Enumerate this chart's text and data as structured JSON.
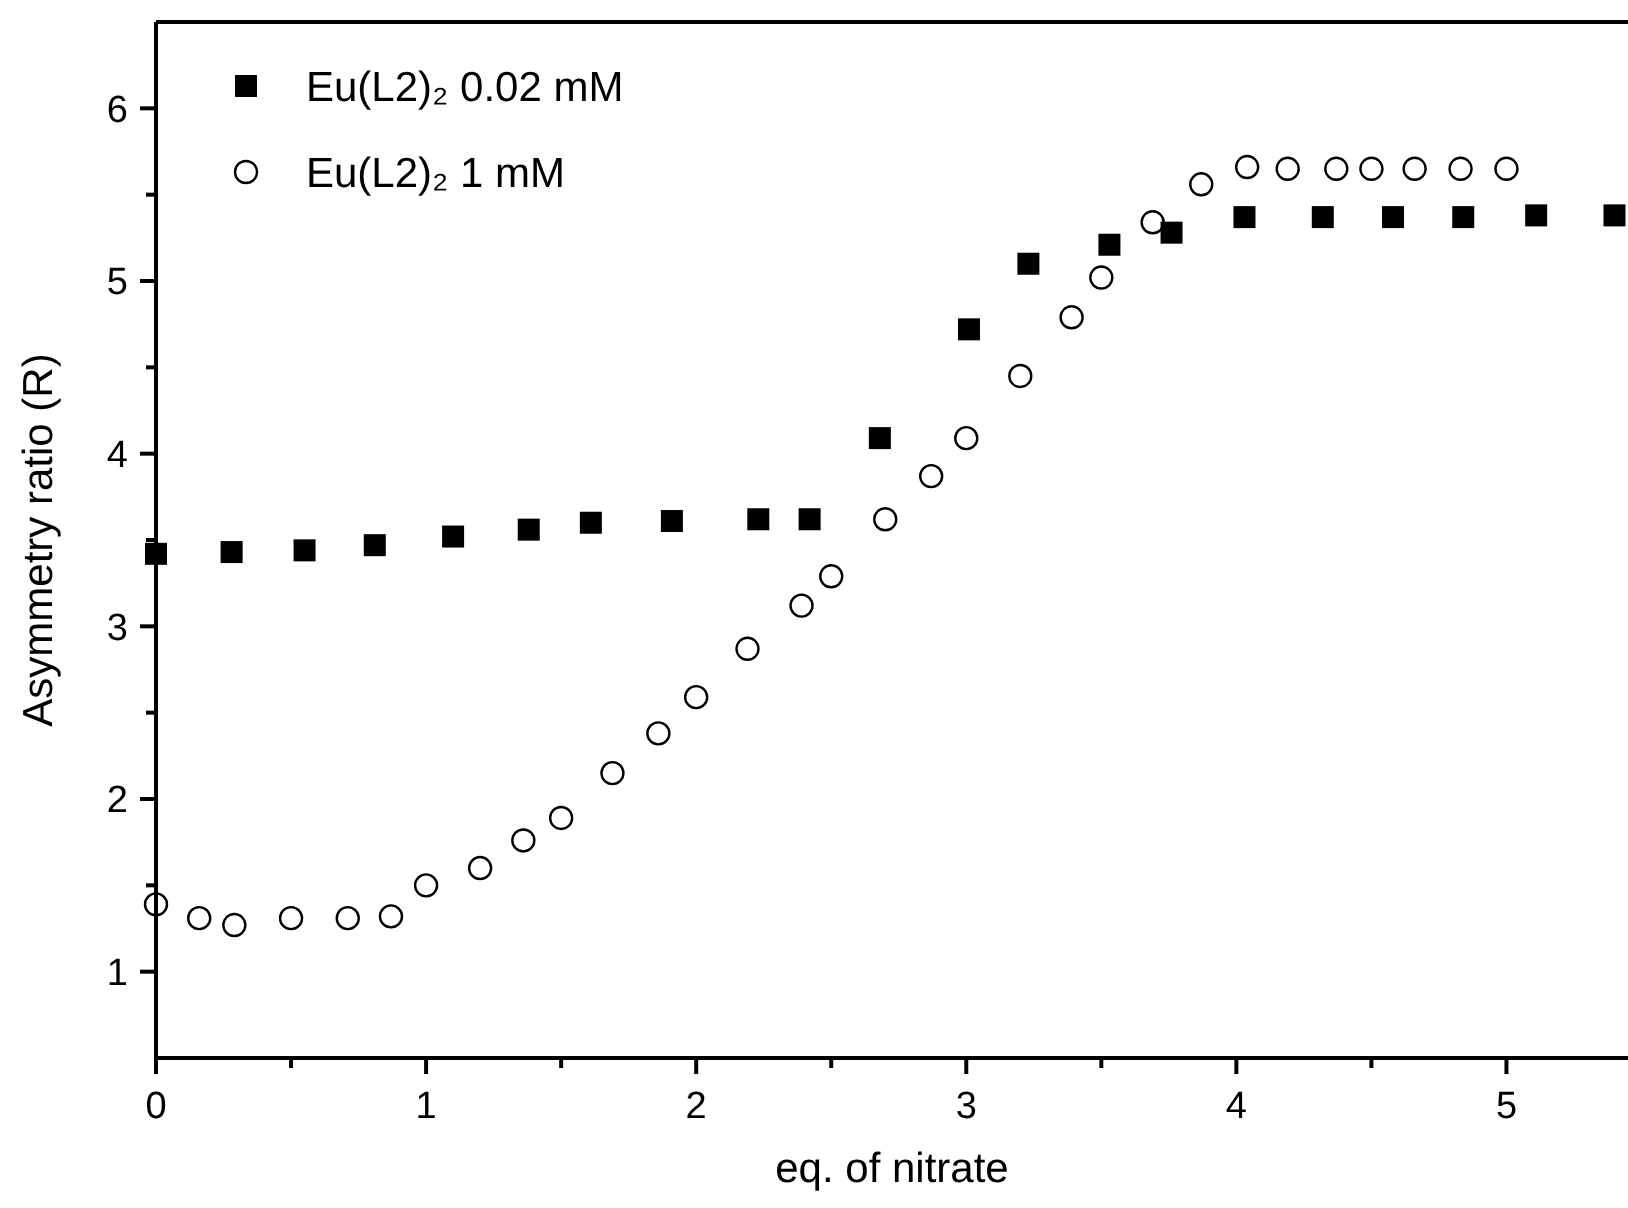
{
  "chart_data": {
    "type": "scatter",
    "xlabel": "eq. of nitrate",
    "ylabel": "Asymmetry ratio (R)",
    "xlim": [
      0,
      5.45
    ],
    "ylim": [
      0.5,
      6.5
    ],
    "xticks": [
      0,
      {
        "value": 0.5,
        "label": null
      },
      1,
      {
        "value": 1.5,
        "label": null
      },
      2,
      {
        "value": 2.5,
        "label": null
      },
      3,
      {
        "value": 3.5,
        "label": null
      },
      4,
      {
        "value": 4.5,
        "label": null
      },
      5
    ],
    "yticks": [
      {
        "value": 1,
        "label": "1"
      },
      {
        "value": 1.5,
        "label": null
      },
      2,
      {
        "value": 2.5,
        "label": null
      },
      3,
      {
        "value": 3.5,
        "label": null
      },
      4,
      {
        "value": 4.5,
        "label": null
      },
      5,
      {
        "value": 5.5,
        "label": null
      },
      6
    ],
    "legend": "top left",
    "grid": false,
    "series": [
      {
        "name": "Eu(L2)₂ 0.02 mM",
        "color": "#000000",
        "marker": "square",
        "x": [
          0,
          0.28,
          0.55,
          0.81,
          1.1,
          1.38,
          1.61,
          1.91,
          2.23,
          2.42,
          2.68,
          3.01,
          3.23,
          3.53,
          3.76,
          4.03,
          4.32,
          4.58,
          4.84,
          5.11,
          5.4
        ],
        "values": [
          3.42,
          3.43,
          3.44,
          3.47,
          3.52,
          3.56,
          3.6,
          3.61,
          3.62,
          3.62,
          4.09,
          4.72,
          5.1,
          5.21,
          5.28,
          5.37,
          5.37,
          5.37,
          5.37,
          5.38,
          5.38
        ]
      },
      {
        "name": "Eu(L2)₂ 1 mM",
        "color": "#000000",
        "marker": "circle",
        "x": [
          0,
          0.16,
          0.29,
          0.5,
          0.71,
          0.87,
          1,
          1.2,
          1.36,
          1.5,
          1.69,
          1.86,
          2,
          2.19,
          2.39,
          2.5,
          2.7,
          2.87,
          3,
          3.2,
          3.39,
          3.5,
          3.69,
          3.87,
          4.04,
          4.19,
          4.37,
          4.5,
          4.66,
          4.83,
          5
        ],
        "values": [
          1.39,
          1.31,
          1.27,
          1.31,
          1.31,
          1.32,
          1.5,
          1.6,
          1.76,
          1.89,
          2.15,
          2.38,
          2.59,
          2.87,
          3.12,
          3.29,
          3.62,
          3.87,
          4.09,
          4.45,
          4.79,
          5.02,
          5.34,
          5.56,
          5.66,
          5.65,
          5.65,
          5.65,
          5.65,
          5.65,
          5.65
        ]
      }
    ]
  }
}
